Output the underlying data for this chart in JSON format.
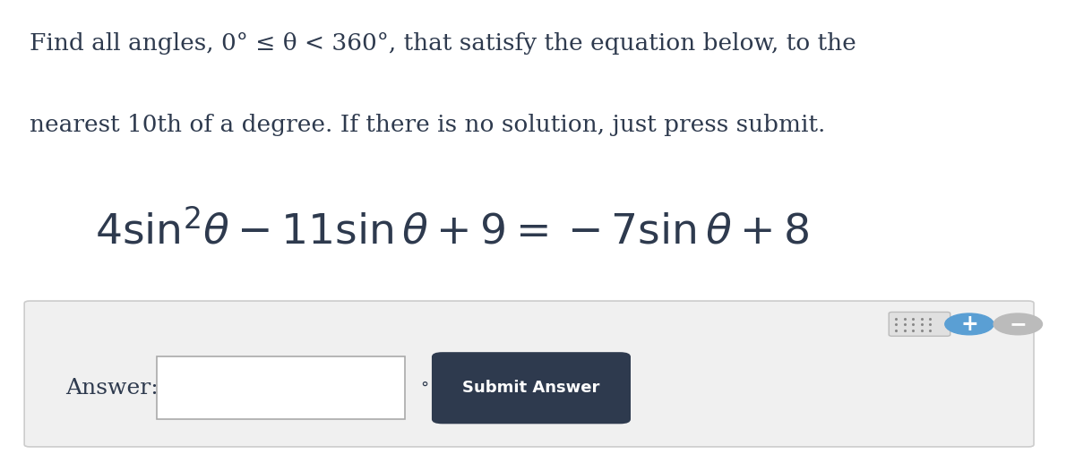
{
  "bg_color": "#ffffff",
  "panel_color": "#f0f0f0",
  "panel_border_color": "#cccccc",
  "text_color": "#2e3a4e",
  "instruction_line1": "Find all angles, 0° ≤ θ < 360°, that satisfy the equation below, to the",
  "instruction_line2": "nearest 10th of a degree. If there is no solution, just press submit.",
  "equation": "$4\\sin^2\\!\\theta - 11\\sin\\theta + 9 = -7\\sin\\theta + 8$",
  "answer_label": "Answer:",
  "submit_label": "Submit Answer",
  "submit_bg": "#2e3a4e",
  "submit_text_color": "#ffffff",
  "input_box_color": "#ffffff",
  "input_border_color": "#aaaaaa",
  "plus_color": "#5a9fd4",
  "minus_color": "#bbbbbb",
  "kbd_color": "#e0e0e0",
  "kbd_border_color": "#bbbbbb",
  "font_size_instruction": 19,
  "font_size_equation": 34,
  "font_size_answer": 18,
  "font_size_submit": 13
}
